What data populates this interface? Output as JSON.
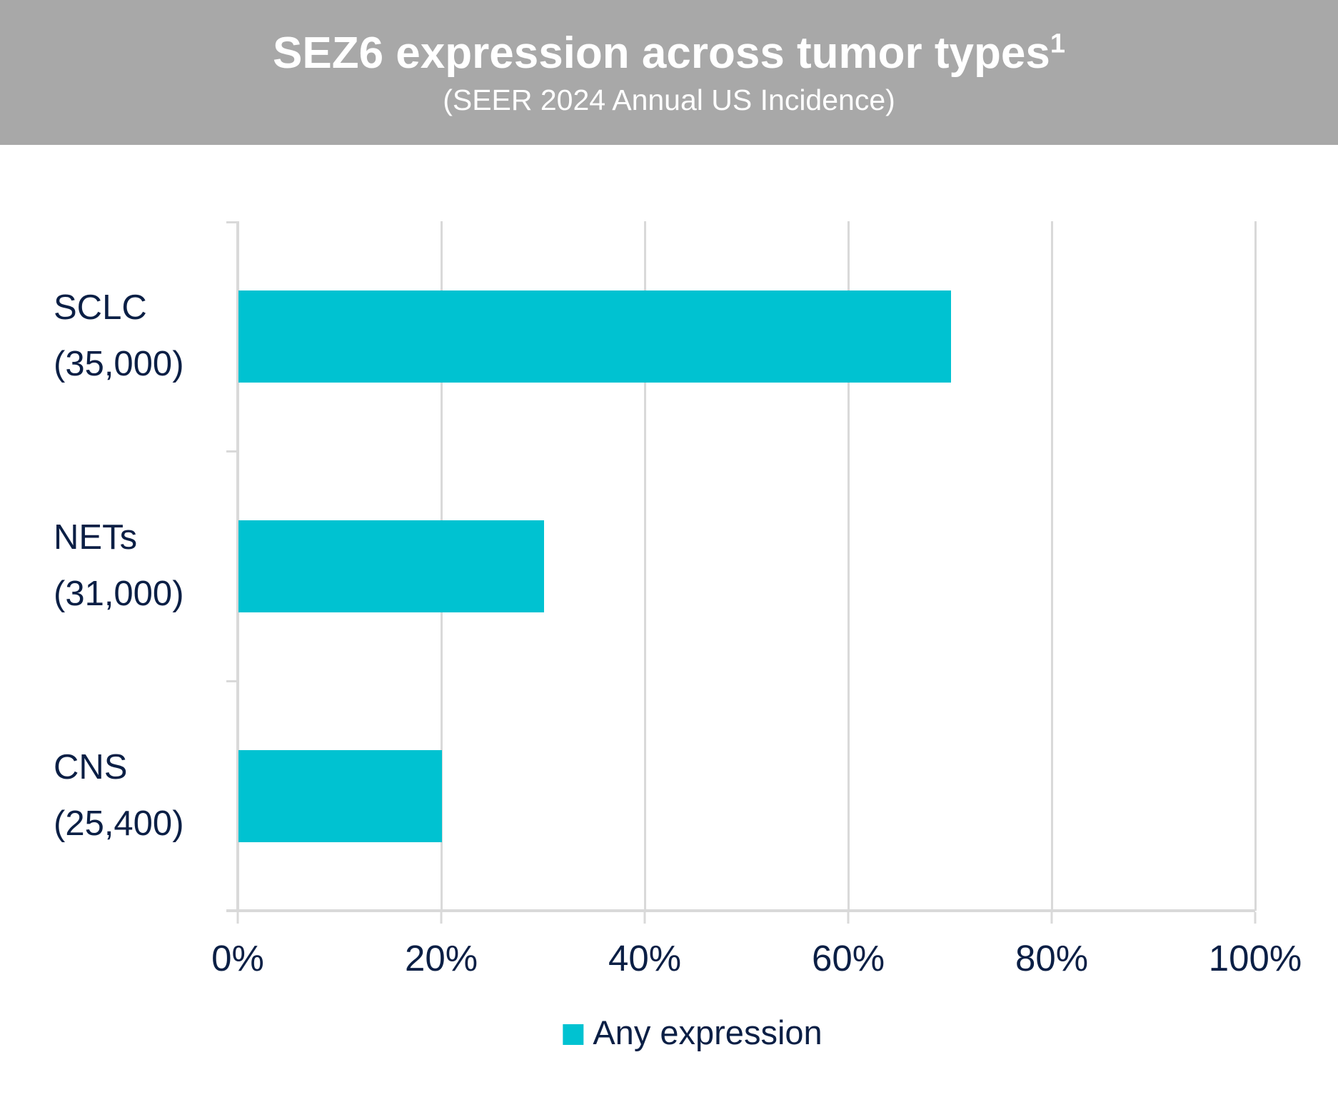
{
  "header": {
    "title": "SEZ6 expression across tumor types",
    "title_superscript": "1",
    "subtitle": "(SEER 2024 Annual US Incidence)",
    "background_color": "#A8A8A8",
    "text_color": "#FFFFFF"
  },
  "chart_data": {
    "type": "bar",
    "orientation": "horizontal",
    "title": "SEZ6 expression across tumor types (SEER 2024 Annual US Incidence)",
    "categories": [
      "SCLC (35,000)",
      "NETs (31,000)",
      "CNS (25,400)"
    ],
    "category_lines": [
      [
        "SCLC",
        "(35,000)"
      ],
      [
        "NETs",
        "(31,000)"
      ],
      [
        "CNS",
        "(25,400)"
      ]
    ],
    "series": [
      {
        "name": "Any expression",
        "values": [
          70,
          30,
          20
        ]
      }
    ],
    "xlabel": "",
    "ylabel": "",
    "xlim": [
      0,
      100
    ],
    "x_tick_values": [
      0,
      20,
      40,
      60,
      80,
      100
    ],
    "x_tick_labels": [
      "0%",
      "20%",
      "40%",
      "60%",
      "80%",
      "100%"
    ],
    "grid": true,
    "legend_position": "bottom",
    "colors": {
      "bar": "#00C2D1",
      "axis": "#D9D9D9",
      "gridline": "#D9D9D9",
      "text": "#0B1F45"
    }
  }
}
